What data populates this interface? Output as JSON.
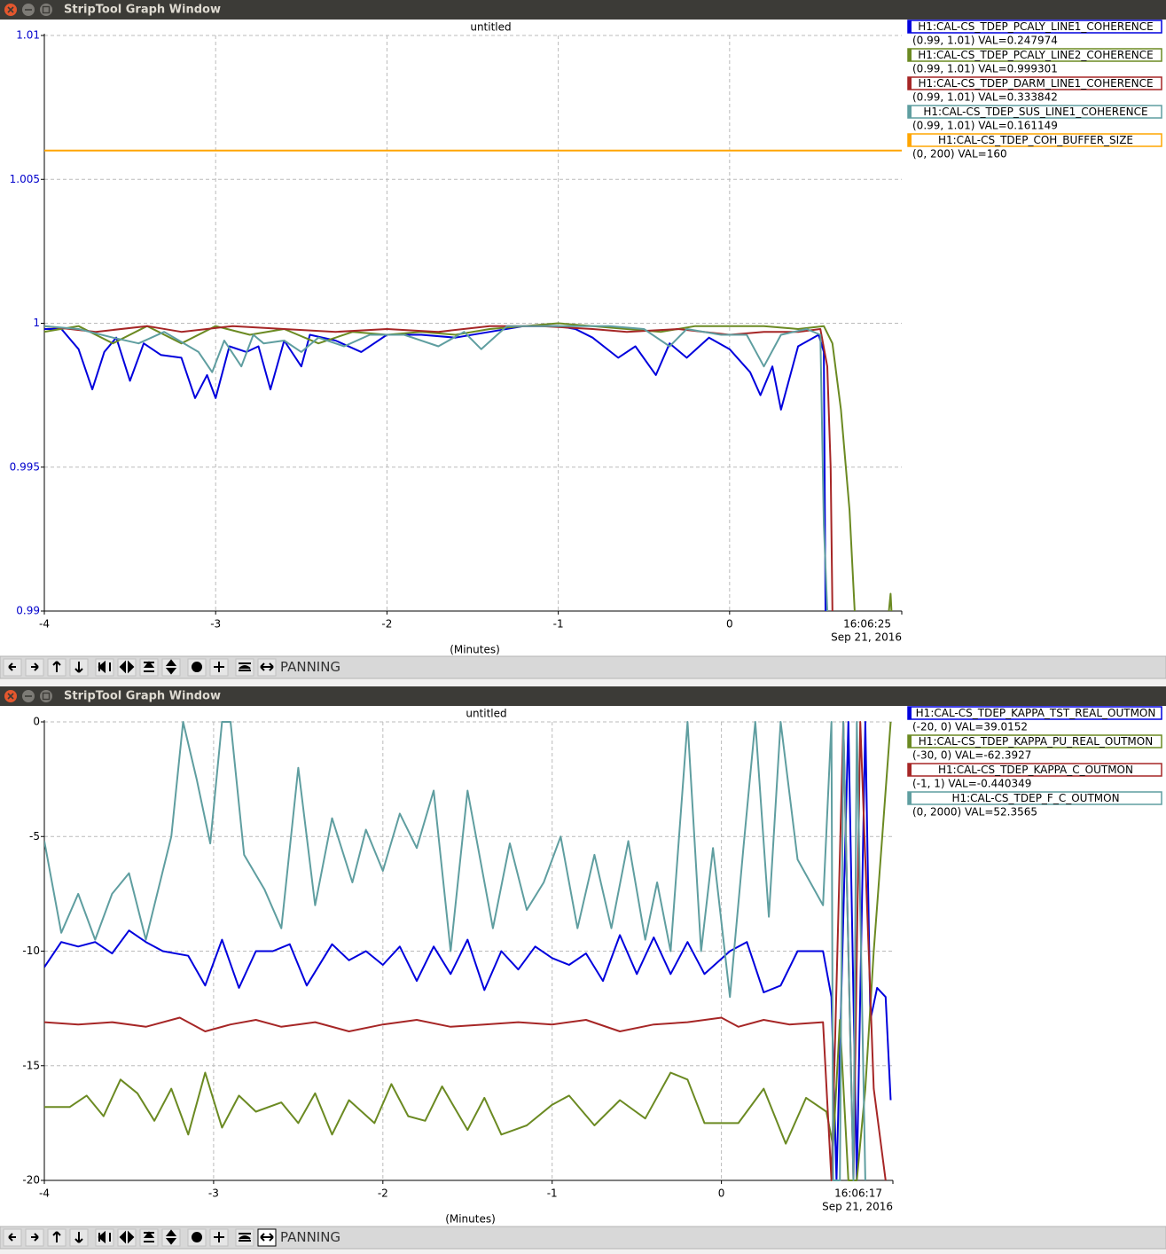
{
  "windows": [
    {
      "title": "StripTool Graph Window",
      "mode": "PANNING"
    },
    {
      "title": "StripTool Graph Window",
      "mode": "PANNING"
    }
  ],
  "chart_data": [
    {
      "type": "line",
      "title": "untitled",
      "x_label": "(Minutes)",
      "time_label": "16:06:25",
      "date_label": "Sep 21, 2016",
      "xlim": [
        -4,
        1.005
      ],
      "xticks": [
        -4,
        -3,
        -2,
        -1,
        0
      ],
      "ylim": [
        0.99,
        1.01
      ],
      "yticks": [
        0.99,
        0.995,
        1,
        1.005,
        1.01
      ],
      "ytick_color": "#0000cc",
      "grid": true,
      "series": [
        {
          "name": "H1:CAL-CS_TDEP_PCALY_LINE1_COHERENCE",
          "legend_detail": "(0.99, 1.01) VAL=0.247974",
          "color": "#0000dd",
          "x": [
            -4,
            -3.9,
            -3.8,
            -3.72,
            -3.65,
            -3.58,
            -3.5,
            -3.42,
            -3.32,
            -3.2,
            -3.12,
            -3.05,
            -3.0,
            -2.92,
            -2.82,
            -2.75,
            -2.68,
            -2.6,
            -2.5,
            -2.45,
            -2.3,
            -2.15,
            -2.0,
            -1.8,
            -1.6,
            -1.4,
            -1.2,
            -1.0,
            -0.9,
            -0.8,
            -0.65,
            -0.55,
            -0.43,
            -0.35,
            -0.25,
            -0.12,
            0.0,
            0.12,
            0.18,
            0.25,
            0.3,
            0.4,
            0.52,
            0.55,
            0.56
          ],
          "values": [
            0.9998,
            0.9998,
            0.9991,
            0.9977,
            0.999,
            0.9995,
            0.998,
            0.9993,
            0.9989,
            0.9988,
            0.9974,
            0.9982,
            0.9974,
            0.9992,
            0.999,
            0.9992,
            0.9977,
            0.9994,
            0.9985,
            0.9996,
            0.9994,
            0.999,
            0.9996,
            0.9996,
            0.9995,
            0.9997,
            0.9999,
            0.9999,
            0.9998,
            0.9995,
            0.9988,
            0.9992,
            0.9982,
            0.9993,
            0.9988,
            0.9995,
            0.9991,
            0.9983,
            0.9975,
            0.9985,
            0.997,
            0.9992,
            0.9996,
            0.999,
            0.99
          ]
        },
        {
          "name": "H1:CAL-CS_TDEP_PCALY_LINE2_COHERENCE",
          "legend_detail": "(0.99, 1.01) VAL=0.999301",
          "color": "#6b8a22",
          "x": [
            -4,
            -3.8,
            -3.6,
            -3.4,
            -3.2,
            -3.0,
            -2.8,
            -2.6,
            -2.4,
            -2.2,
            -2.0,
            -1.8,
            -1.6,
            -1.4,
            -1.2,
            -1.0,
            -0.8,
            -0.6,
            -0.4,
            -0.2,
            0,
            0.2,
            0.4,
            0.55,
            0.6,
            0.65,
            0.7,
            0.73,
            null,
            0.93,
            0.94,
            0.945
          ],
          "values": [
            0.9997,
            0.9999,
            0.9993,
            0.9999,
            0.9993,
            0.9999,
            0.9996,
            0.9998,
            0.9993,
            0.9997,
            0.9996,
            0.9997,
            0.9996,
            0.9998,
            0.9999,
            1.0,
            0.9999,
            0.9998,
            0.9997,
            0.9999,
            0.9999,
            0.9999,
            0.9998,
            0.9999,
            0.9993,
            0.997,
            0.9935,
            0.99,
            null,
            0.99,
            0.9906,
            0.99
          ]
        },
        {
          "name": "H1:CAL-CS_TDEP_DARM_LINE1_COHERENCE",
          "legend_detail": "(0.99, 1.01) VAL=0.333842",
          "color": "#a62626",
          "x": [
            -4,
            -3.7,
            -3.4,
            -3.2,
            -2.9,
            -2.6,
            -2.3,
            -2.0,
            -1.7,
            -1.4,
            -1.1,
            -0.8,
            -0.6,
            -0.3,
            0,
            0.2,
            0.4,
            0.53,
            0.57,
            0.59,
            0.6
          ],
          "values": [
            0.9999,
            0.9997,
            0.9999,
            0.9997,
            0.9999,
            0.9998,
            0.9997,
            0.9998,
            0.9997,
            0.9999,
            0.9999,
            0.9998,
            0.9997,
            0.9998,
            0.9996,
            0.9997,
            0.9997,
            0.9998,
            0.9985,
            0.995,
            0.99
          ]
        },
        {
          "name": "H1:CAL-CS_TDEP_SUS_LINE1_COHERENCE",
          "legend_detail": "(0.99, 1.01) VAL=0.161149",
          "color": "#5f9ea0",
          "x": [
            -4,
            -3.8,
            -3.6,
            -3.45,
            -3.3,
            -3.1,
            -3.02,
            -2.95,
            -2.85,
            -2.78,
            -2.72,
            -2.6,
            -2.5,
            -2.4,
            -2.25,
            -2.1,
            -1.9,
            -1.7,
            -1.55,
            -1.45,
            -1.3,
            -1.1,
            -0.9,
            -0.7,
            -0.5,
            -0.35,
            -0.25,
            -0.05,
            0.1,
            0.2,
            0.3,
            0.45,
            0.53,
            0.55,
            0.57
          ],
          "values": [
            0.9999,
            0.9998,
            0.9995,
            0.9993,
            0.9997,
            0.999,
            0.9983,
            0.9994,
            0.9985,
            0.9996,
            0.9993,
            0.9994,
            0.999,
            0.9995,
            0.9992,
            0.9996,
            0.9996,
            0.9992,
            0.9997,
            0.9991,
            0.9999,
            0.9999,
            0.9999,
            0.9999,
            0.9998,
            0.9992,
            0.9998,
            0.9996,
            0.9996,
            0.9985,
            0.9996,
            0.9998,
            0.9996,
            0.993,
            0.99
          ]
        },
        {
          "name": "H1:CAL-CS_TDEP_COH_BUFFER_SIZE",
          "legend_detail": "(0, 200)  VAL=160",
          "color": "#ffa500",
          "x": [
            -4,
            1.005
          ],
          "values": [
            1.006,
            1.006
          ]
        }
      ]
    },
    {
      "type": "line",
      "title": "untitled",
      "x_label": "(Minutes)",
      "time_label": "16:06:17",
      "date_label": "Sep 21, 2016",
      "xlim": [
        -4,
        1.013
      ],
      "xticks": [
        -4,
        -3,
        -2,
        -1,
        0
      ],
      "ylim": [
        -20,
        0
      ],
      "yticks": [
        -20,
        -15,
        -10,
        -5,
        0
      ],
      "ytick_color": "#000000",
      "grid": true,
      "series": [
        {
          "name": "H1:CAL-CS_TDEP_KAPPA_TST_REAL_OUTMON",
          "legend_detail": "(-20, 0) VAL=39.0152",
          "color": "#0000dd",
          "x": [
            -4,
            -3.9,
            -3.8,
            -3.7,
            -3.6,
            -3.5,
            -3.4,
            -3.3,
            -3.15,
            -3.05,
            -2.95,
            -2.85,
            -2.75,
            -2.65,
            -2.55,
            -2.45,
            -2.3,
            -2.2,
            -2.1,
            -2.0,
            -1.9,
            -1.8,
            -1.7,
            -1.6,
            -1.5,
            -1.4,
            -1.3,
            -1.2,
            -1.1,
            -1.0,
            -0.9,
            -0.8,
            -0.7,
            -0.6,
            -0.5,
            -0.4,
            -0.3,
            -0.2,
            -0.1,
            0.05,
            0.15,
            0.25,
            0.35,
            0.45,
            0.6,
            0.65,
            0.68,
            0.75,
            0.8,
            0.85,
            0.88,
            0.92,
            0.97,
            1.0
          ],
          "values": [
            -10.7,
            -9.6,
            -9.8,
            -9.6,
            -10.1,
            -9.1,
            -9.6,
            -10.0,
            -10.2,
            -11.5,
            -9.5,
            -11.6,
            -10.0,
            -10.0,
            -9.7,
            -11.5,
            -9.7,
            -10.4,
            -10.0,
            -10.6,
            -9.8,
            -11.3,
            -9.8,
            -11.0,
            -9.5,
            -11.7,
            -10.0,
            -10.8,
            -9.8,
            -10.3,
            -10.6,
            -10.1,
            -11.3,
            -9.3,
            -11.0,
            -9.4,
            -11.0,
            -9.6,
            -11.0,
            -10.0,
            -9.6,
            -11.8,
            -11.5,
            -10.0,
            -10.0,
            -12.0,
            -20,
            0,
            -20,
            0,
            -13,
            -11.6,
            -12,
            -16.5
          ]
        },
        {
          "name": "H1:CAL-CS_TDEP_KAPPA_PU_REAL_OUTMON",
          "legend_detail": "(-30, 0) VAL=-62.3927",
          "color": "#6b8a22",
          "x": [
            -4,
            -3.85,
            -3.75,
            -3.65,
            -3.55,
            -3.45,
            -3.35,
            -3.25,
            -3.15,
            -3.05,
            -2.95,
            -2.85,
            -2.75,
            -2.6,
            -2.5,
            -2.4,
            -2.3,
            -2.2,
            -2.05,
            -1.95,
            -1.85,
            -1.75,
            -1.65,
            -1.5,
            -1.4,
            -1.3,
            -1.15,
            -1.0,
            -0.9,
            -0.75,
            -0.6,
            -0.45,
            -0.3,
            -0.2,
            -0.1,
            0.1,
            0.25,
            0.38,
            0.5,
            0.62,
            0.66,
            0.7,
            0.75,
            0.8,
            0.85,
            0.9,
            0.95,
            1.0
          ],
          "values": [
            -16.8,
            -16.8,
            -16.3,
            -17.2,
            -15.6,
            -16.2,
            -17.4,
            -16.0,
            -18.0,
            -15.3,
            -17.7,
            -16.3,
            -17.0,
            -16.6,
            -17.5,
            -16.2,
            -18.0,
            -16.5,
            -17.5,
            -15.8,
            -17.2,
            -17.4,
            -15.9,
            -17.8,
            -16.4,
            -18.0,
            -17.6,
            -16.7,
            -16.3,
            -17.6,
            -16.5,
            -17.3,
            -15.3,
            -15.6,
            -17.5,
            -17.5,
            -16.0,
            -18.4,
            -16.4,
            -17.0,
            -18.5,
            -13,
            -20,
            -20,
            -16,
            -10,
            -5,
            0
          ]
        },
        {
          "name": "H1:CAL-CS_TDEP_KAPPA_C_OUTMON",
          "legend_detail": "(-1, 1) VAL=-0.440349",
          "color": "#a62626",
          "x": [
            -4,
            -3.8,
            -3.6,
            -3.4,
            -3.2,
            -3.05,
            -2.9,
            -2.75,
            -2.6,
            -2.4,
            -2.2,
            -2.0,
            -1.8,
            -1.6,
            -1.4,
            -1.2,
            -1.0,
            -0.8,
            -0.6,
            -0.4,
            -0.2,
            0,
            0.1,
            0.25,
            0.4,
            0.6,
            0.65,
            0.72,
            0.78,
            0.82,
            0.9,
            0.97
          ],
          "values": [
            -13.1,
            -13.2,
            -13.1,
            -13.3,
            -12.9,
            -13.5,
            -13.2,
            -13.0,
            -13.3,
            -13.1,
            -13.5,
            -13.2,
            -13.0,
            -13.3,
            -13.2,
            -13.1,
            -13.2,
            -13.0,
            -13.5,
            -13.2,
            -13.1,
            -12.9,
            -13.3,
            -13.0,
            -13.2,
            -13.1,
            -20,
            0,
            -20,
            0,
            -16,
            -20
          ]
        },
        {
          "name": "H1:CAL-CS_TDEP_F_C_OUTMON",
          "legend_detail": "(0, 2000) VAL=52.3565",
          "color": "#5f9ea0",
          "x": [
            -4,
            -3.9,
            -3.8,
            -3.7,
            -3.6,
            -3.5,
            -3.4,
            -3.25,
            -3.18,
            -3.1,
            -3.02,
            -2.95,
            -2.9,
            -2.82,
            -2.7,
            -2.6,
            -2.5,
            -2.4,
            -2.3,
            -2.18,
            -2.1,
            -2.0,
            -1.9,
            -1.8,
            -1.7,
            -1.6,
            -1.5,
            -1.35,
            -1.25,
            -1.15,
            -1.05,
            -0.95,
            -0.85,
            -0.75,
            -0.65,
            -0.55,
            -0.45,
            -0.38,
            -0.3,
            -0.2,
            -0.12,
            -0.05,
            0.05,
            0.13,
            0.2,
            0.28,
            0.35,
            0.45,
            0.6,
            0.65,
            0.66,
            0.7,
            0.72,
            0.78,
            0.8,
            0.85
          ],
          "values": [
            -5.2,
            -9.2,
            -7.5,
            -9.5,
            -7.5,
            -6.6,
            -9.5,
            -5.0,
            0,
            -2.5,
            -5.3,
            0,
            0,
            -5.8,
            -7.3,
            -9.0,
            -2.0,
            -8.0,
            -4.2,
            -7.0,
            -4.7,
            -6.5,
            -4.0,
            -5.5,
            -3.0,
            -10.0,
            -3.0,
            -9.0,
            -5.3,
            -8.2,
            -7.0,
            -5.0,
            -9.0,
            -5.8,
            -9.0,
            -5.2,
            -9.5,
            -7.0,
            -10.0,
            0,
            -10.0,
            -5.5,
            -12.0,
            -5.5,
            0,
            -8.5,
            0,
            -6.0,
            -8.0,
            0,
            -20,
            -20,
            0,
            -20,
            0,
            -20
          ]
        }
      ]
    }
  ]
}
